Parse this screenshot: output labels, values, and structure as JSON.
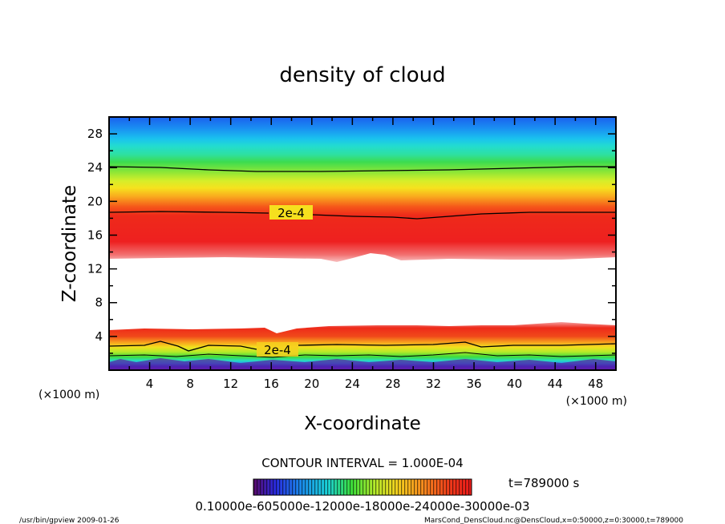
{
  "chart_data": {
    "type": "heatmap",
    "title": "density of cloud",
    "xlabel": "X-coordinate",
    "ylabel": "Z-coordinate",
    "x_unit": "(×1000 m)",
    "y_unit": "(×1000 m)",
    "xlim": [
      0,
      50
    ],
    "ylim": [
      0,
      30
    ],
    "x_ticks": [
      "4",
      "8",
      "12",
      "16",
      "20",
      "24",
      "28",
      "32",
      "36",
      "40",
      "44",
      "48"
    ],
    "y_ticks": [
      "4",
      "8",
      "12",
      "16",
      "20",
      "24",
      "28"
    ],
    "contour_labels": [
      "2e-4",
      "2e-4"
    ],
    "contour_interval_label": "CONTOUR INTERVAL = 1.000E-04",
    "colorbar_labels": "0.10000e-605000e-12000e-18000e-24000e-30000e-03",
    "colorbar_range": [
      0.0001,
      0.0003
    ],
    "time_label": "t=789000 s",
    "colormap": [
      "#7a1ab8",
      "#2a3adf",
      "#1aa8ec",
      "#2ad6b0",
      "#3fe03a",
      "#c8ec2a",
      "#f5e61e",
      "#fa9a1e",
      "#f43a1a",
      "#ee1a1a"
    ],
    "bands": {
      "upper_layer_z": [
        13.3,
        19.0
      ],
      "clear_gap_z": [
        5.5,
        13.3
      ],
      "lower_layer_z": [
        0.5,
        5.5
      ]
    }
  },
  "footer": {
    "left": "/usr/bin/gpview   2009-01-26",
    "right": "MarsCond_DensCloud.nc@DensCloud,x=0:50000,z=0:30000,t=789000"
  }
}
